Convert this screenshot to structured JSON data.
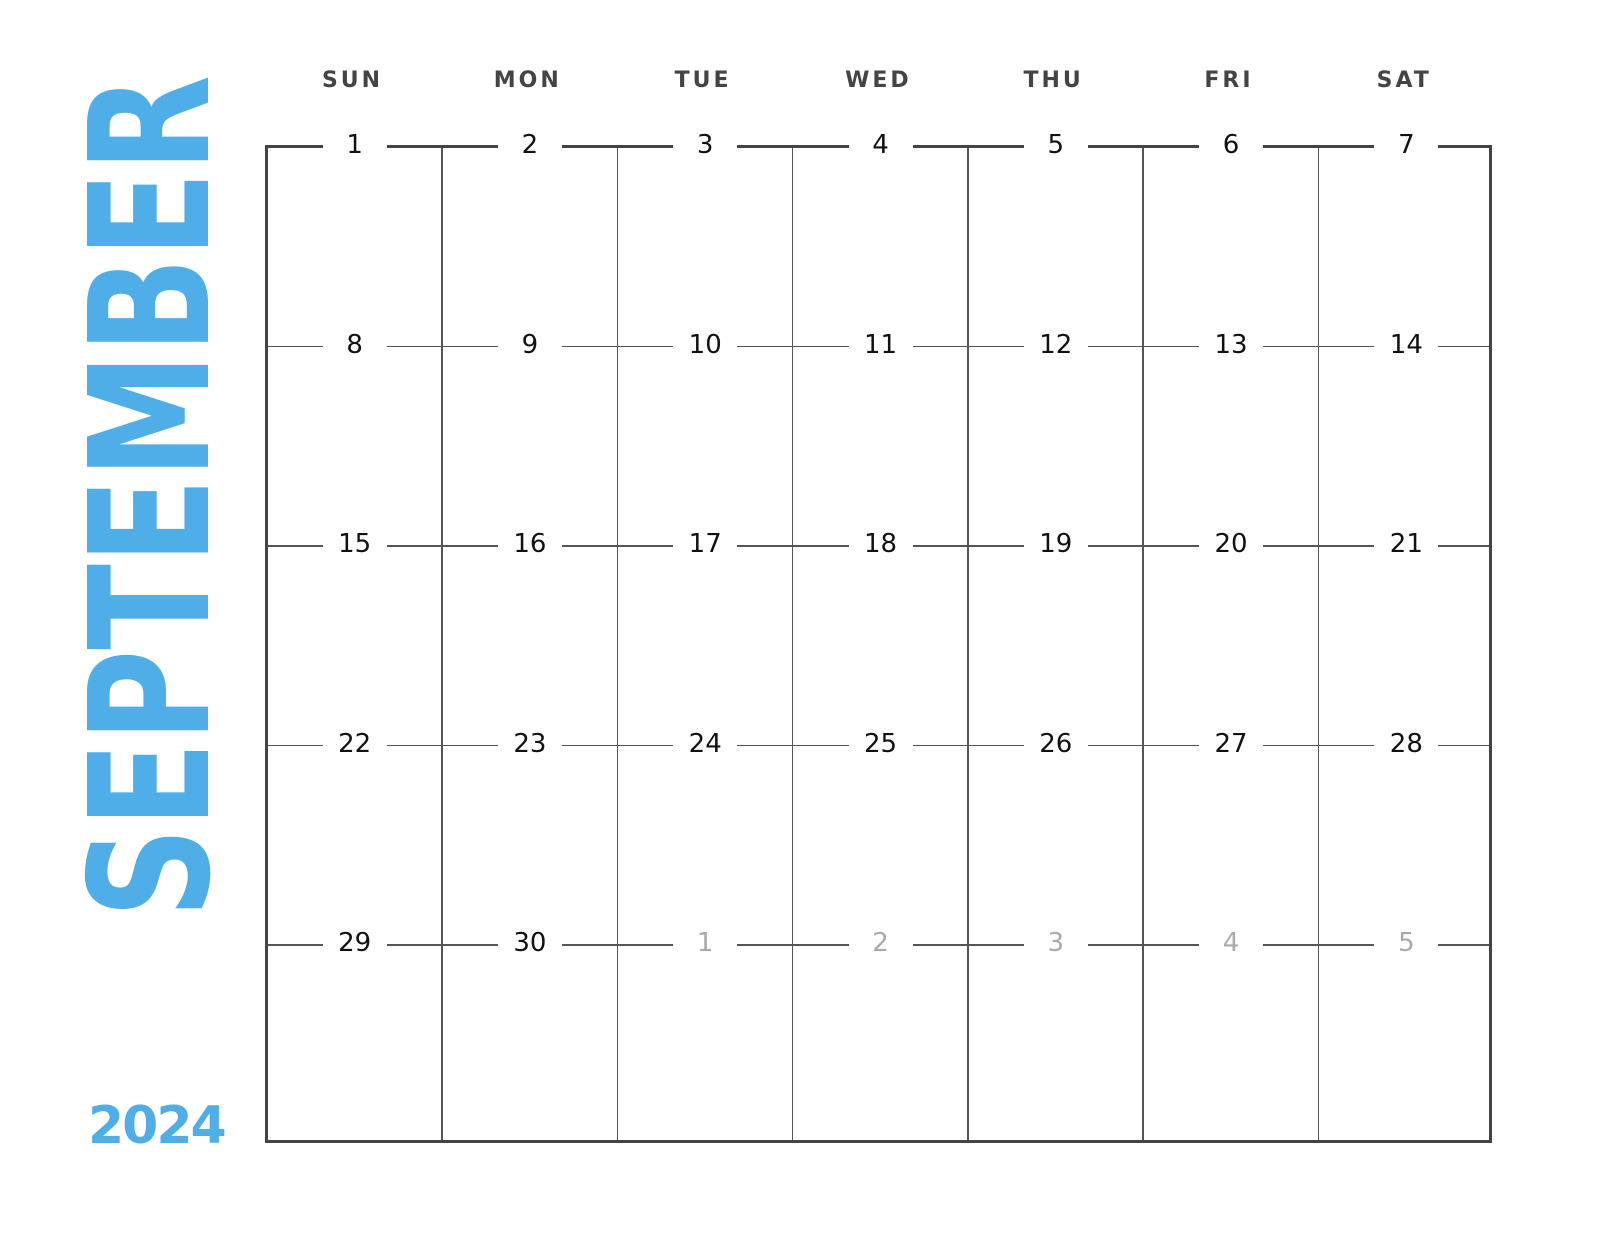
{
  "month": "SEPTEMBER",
  "year": "2024",
  "accent_color": "#4FAEE8",
  "weekdays": [
    "SUN",
    "MON",
    "TUE",
    "WED",
    "THU",
    "FRI",
    "SAT"
  ],
  "weeks": [
    [
      {
        "day": "1"
      },
      {
        "day": "2"
      },
      {
        "day": "3"
      },
      {
        "day": "4"
      },
      {
        "day": "5"
      },
      {
        "day": "6"
      },
      {
        "day": "7"
      }
    ],
    [
      {
        "day": "8"
      },
      {
        "day": "9"
      },
      {
        "day": "10"
      },
      {
        "day": "11"
      },
      {
        "day": "12"
      },
      {
        "day": "13"
      },
      {
        "day": "14"
      }
    ],
    [
      {
        "day": "15"
      },
      {
        "day": "16"
      },
      {
        "day": "17"
      },
      {
        "day": "18"
      },
      {
        "day": "19"
      },
      {
        "day": "20"
      },
      {
        "day": "21"
      }
    ],
    [
      {
        "day": "22"
      },
      {
        "day": "23"
      },
      {
        "day": "24"
      },
      {
        "day": "25"
      },
      {
        "day": "26"
      },
      {
        "day": "27"
      },
      {
        "day": "28"
      }
    ],
    [
      {
        "day": "29"
      },
      {
        "day": "30"
      },
      {
        "day": "1",
        "other_month": true
      },
      {
        "day": "2",
        "other_month": true
      },
      {
        "day": "3",
        "other_month": true
      },
      {
        "day": "4",
        "other_month": true
      },
      {
        "day": "5",
        "other_month": true
      }
    ]
  ]
}
